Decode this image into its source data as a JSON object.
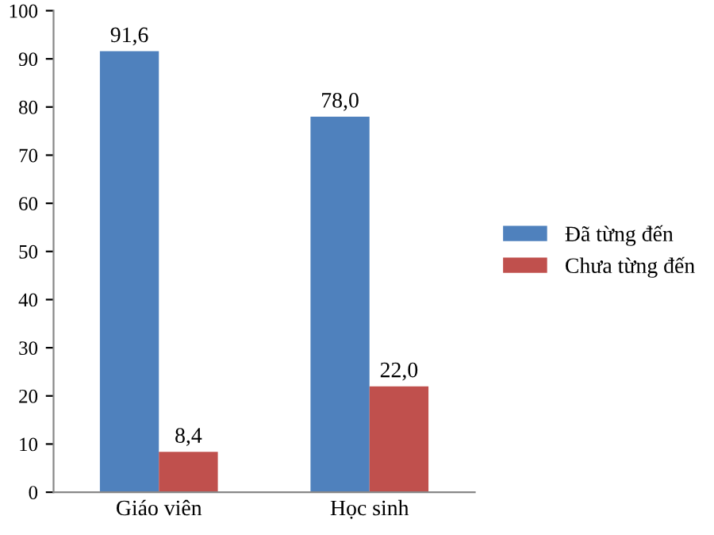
{
  "chart_data": {
    "type": "bar",
    "categories": [
      "Giáo viên",
      "Học sinh"
    ],
    "series": [
      {
        "name": "Đã từng đến",
        "color": "#4f81bd",
        "values": [
          91.6,
          78.0
        ],
        "value_labels": [
          "91,6",
          "78,0"
        ]
      },
      {
        "name": "Chưa từng đến",
        "color": "#c0504d",
        "values": [
          8.4,
          22.0
        ],
        "value_labels": [
          "8,4",
          "22,0"
        ]
      }
    ],
    "ylim": [
      0,
      100
    ],
    "yticks": [
      0,
      10,
      20,
      30,
      40,
      50,
      60,
      70,
      80,
      90,
      100
    ],
    "grid": false,
    "legend": "right"
  }
}
